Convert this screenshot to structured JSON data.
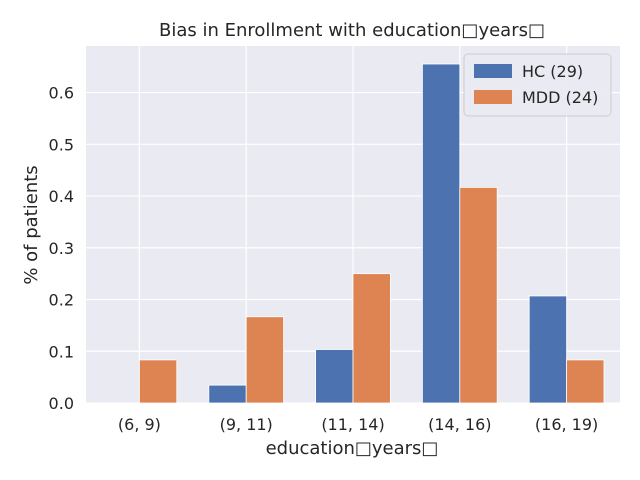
{
  "chart_data": {
    "type": "bar",
    "title": "Bias in Enrollment with education□years□",
    "xlabel": "education□years□",
    "ylabel": "% of patients",
    "categories": [
      "(6, 9)",
      "(9, 11)",
      "(11, 14)",
      "(14, 16)",
      "(16, 19)"
    ],
    "series": [
      {
        "name": "HC (29)",
        "values": [
          0.0,
          0.0345,
          0.1034,
          0.6552,
          0.2069
        ]
      },
      {
        "name": "MDD (24)",
        "values": [
          0.0833,
          0.1667,
          0.25,
          0.4167,
          0.0833
        ]
      }
    ],
    "ylim": [
      0,
      0.69
    ],
    "yticks": [
      "0.0",
      "0.1",
      "0.2",
      "0.3",
      "0.4",
      "0.5",
      "0.6"
    ],
    "grid": true,
    "legend_position": "top-right",
    "colors": {
      "background": "#eaeaf2",
      "grid": "#ffffff",
      "series": [
        "#4c72b0",
        "#dd8452"
      ]
    }
  }
}
